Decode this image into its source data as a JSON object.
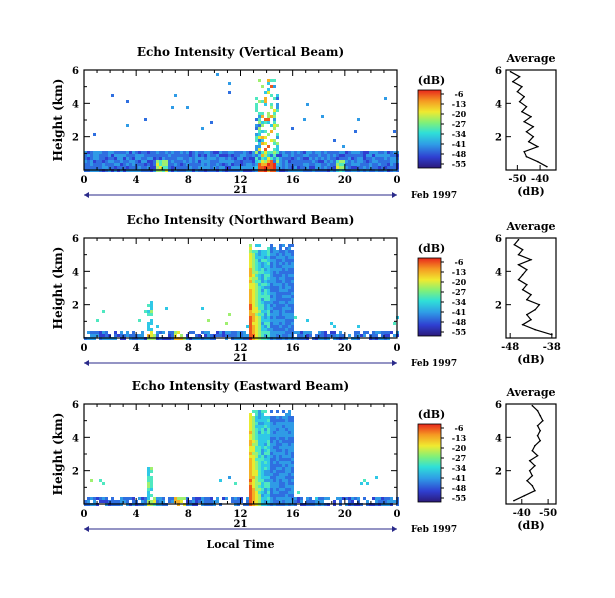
{
  "chart_data": [
    {
      "type": "heatmap",
      "title": "Echo Intensity (Vertical Beam)",
      "ylabel": "Height (km)",
      "xlim": [
        0,
        24
      ],
      "ylim": [
        0,
        6
      ],
      "x_ticks": [
        "0",
        "4",
        "8",
        "12",
        "16",
        "20",
        "0"
      ],
      "y_ticks": [
        "2",
        "4",
        "6"
      ],
      "date_label": "21",
      "date_suffix": "Feb 1997",
      "colorbar_title": "(dB)",
      "colorbar_ticks": [
        "-6",
        "-13",
        "-20",
        "-27",
        "-34",
        "-41",
        "-48",
        "-55"
      ],
      "features": {
        "low_layer_top_km": 1.3,
        "event_center_hour": 13.9,
        "event_width_hours": 1.8,
        "event_top_km": 5.6,
        "scatter_above_layer": "sparse"
      },
      "profile": {
        "title": "Average",
        "xlabel": "(dB)",
        "x_ticks": [
          "-50",
          "-40"
        ],
        "xlim": [
          -55,
          -33
        ],
        "y_ticks": [
          "2",
          "4",
          "6"
        ],
        "ylim": [
          0,
          6
        ],
        "heights": [
          0.2,
          0.5,
          0.8,
          1.1,
          1.4,
          1.7,
          2.0,
          2.3,
          2.6,
          2.9,
          3.2,
          3.5,
          3.8,
          4.1,
          4.4,
          4.7,
          5.0,
          5.3,
          5.6,
          5.9
        ],
        "values": [
          -37,
          -41,
          -46,
          -47,
          -41,
          -45,
          -43,
          -46,
          -43,
          -47,
          -44,
          -48,
          -46,
          -49,
          -47,
          -50,
          -48,
          -52,
          -49,
          -53
        ]
      }
    },
    {
      "type": "heatmap",
      "title": "Echo Intensity (Northward Beam)",
      "ylabel": "Height (km)",
      "xlim": [
        0,
        24
      ],
      "ylim": [
        0,
        6
      ],
      "x_ticks": [
        "0",
        "4",
        "8",
        "12",
        "16",
        "20",
        "0"
      ],
      "y_ticks": [
        "2",
        "4",
        "6"
      ],
      "date_label": "21",
      "date_suffix": "Feb 1997",
      "colorbar_title": "(dB)",
      "colorbar_ticks": [
        "-6",
        "-13",
        "-20",
        "-27",
        "-34",
        "-41",
        "-48",
        "-55"
      ],
      "features": {
        "low_layer_top_km": 0.6,
        "event_start_hour": 12.5,
        "event_end_hour": 16.0,
        "event_top_km": 5.8
      },
      "profile": {
        "title": "Average",
        "xlabel": "(dB)",
        "x_ticks": [
          "-48",
          "-38"
        ],
        "xlim": [
          -49,
          -37
        ],
        "y_ticks": [
          "2",
          "4",
          "6"
        ],
        "ylim": [
          0,
          6
        ],
        "heights": [
          0.2,
          0.5,
          0.8,
          1.1,
          1.4,
          1.7,
          2.0,
          2.3,
          2.6,
          2.9,
          3.2,
          3.5,
          3.8,
          4.1,
          4.4,
          4.7,
          5.0,
          5.3,
          5.6,
          5.9
        ],
        "values": [
          -38,
          -42,
          -45,
          -43,
          -44,
          -42,
          -41,
          -44,
          -43,
          -45,
          -44,
          -46,
          -45,
          -44,
          -46,
          -43,
          -46,
          -45,
          -47,
          -46
        ]
      }
    },
    {
      "type": "heatmap",
      "title": "Echo Intensity (Eastward Beam)",
      "ylabel": "Height (km)",
      "xlim": [
        0,
        24
      ],
      "ylim": [
        0,
        6
      ],
      "x_ticks": [
        "0",
        "4",
        "8",
        "12",
        "16",
        "20",
        "0"
      ],
      "y_ticks": [
        "2",
        "4",
        "6"
      ],
      "date_label": "21",
      "date_suffix": "Feb 1997",
      "xlabel": "Local Time",
      "colorbar_title": "(dB)",
      "colorbar_ticks": [
        "-6",
        "-13",
        "-20",
        "-27",
        "-34",
        "-41",
        "-48",
        "-55"
      ],
      "features": {
        "low_layer_top_km": 0.6,
        "event_start_hour": 12.5,
        "event_end_hour": 16.0,
        "event_top_km": 5.8
      },
      "profile": {
        "title": "Average",
        "xlabel": "(dB)",
        "x_ticks": [
          "-40",
          "-50"
        ],
        "xlim": [
          -34,
          -53
        ],
        "y_ticks": [
          "2",
          "4",
          "6"
        ],
        "ylim": [
          0,
          6
        ],
        "heights": [
          0.2,
          0.5,
          0.8,
          1.1,
          1.4,
          1.7,
          2.0,
          2.3,
          2.6,
          2.9,
          3.2,
          3.5,
          3.8,
          4.1,
          4.4,
          4.7,
          5.0,
          5.3,
          5.6,
          5.9
        ],
        "values": [
          -37,
          -41,
          -45,
          -44,
          -42,
          -44,
          -43,
          -45,
          -43,
          -46,
          -44,
          -45,
          -47,
          -46,
          -47,
          -46,
          -48,
          -47,
          -46,
          -44
        ]
      }
    }
  ]
}
